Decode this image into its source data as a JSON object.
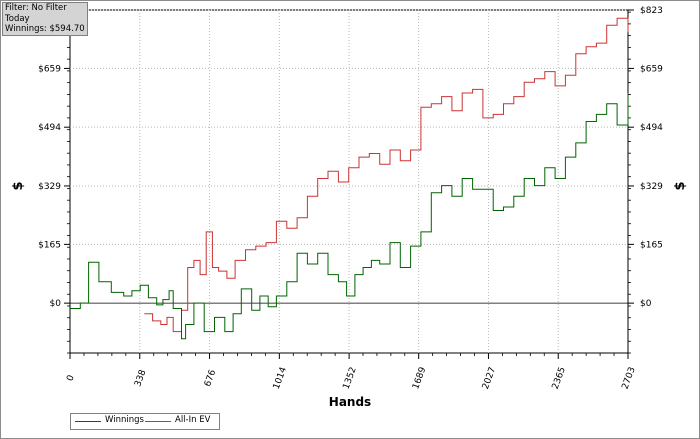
{
  "info_box": {
    "filter": "Filter: No Filter",
    "period": "Today",
    "winnings": "Winnings: $594.70"
  },
  "chart_data": {
    "type": "line",
    "xlabel": "Hands",
    "ylabel": "$",
    "xlim": [
      0,
      2703
    ],
    "ylim": [
      -140,
      823
    ],
    "x_ticks": [
      0,
      338,
      676,
      1014,
      1352,
      1689,
      2027,
      2365,
      2703
    ],
    "x_tick_labels": [
      "0",
      "338",
      "676",
      "1014",
      "1352",
      "1689",
      "2027",
      "2365",
      "2703"
    ],
    "y_ticks": [
      0,
      165,
      329,
      494,
      659,
      823
    ],
    "y_tick_labels": [
      "$0",
      "$165",
      "$329",
      "$494",
      "$659",
      "$823"
    ],
    "grid": true,
    "legend_position": "bottom-left",
    "series": [
      {
        "name": "Winnings",
        "color": "#006400",
        "x": [
          0,
          50,
          90,
          140,
          200,
          260,
          300,
          340,
          380,
          420,
          450,
          480,
          500,
          540,
          560,
          600,
          650,
          700,
          750,
          790,
          830,
          880,
          920,
          960,
          1000,
          1050,
          1100,
          1150,
          1200,
          1250,
          1300,
          1340,
          1380,
          1420,
          1460,
          1500,
          1550,
          1600,
          1650,
          1700,
          1750,
          1800,
          1850,
          1900,
          1950,
          2000,
          2050,
          2100,
          2150,
          2200,
          2250,
          2300,
          2350,
          2400,
          2450,
          2500,
          2550,
          2600,
          2650,
          2703
        ],
        "y": [
          -15,
          0,
          115,
          60,
          30,
          20,
          35,
          50,
          15,
          -5,
          10,
          35,
          -15,
          -100,
          -60,
          0,
          -80,
          -40,
          -80,
          -30,
          40,
          -20,
          20,
          -10,
          20,
          60,
          140,
          110,
          140,
          80,
          60,
          20,
          80,
          100,
          120,
          110,
          170,
          100,
          160,
          200,
          310,
          330,
          300,
          350,
          320,
          320,
          260,
          270,
          300,
          350,
          330,
          380,
          350,
          410,
          450,
          510,
          530,
          560,
          500,
          590
        ]
      },
      {
        "name": "All-In EV",
        "color": "#cc3333",
        "x": [
          360,
          400,
          440,
          470,
          500,
          540,
          570,
          600,
          630,
          660,
          690,
          720,
          760,
          800,
          850,
          900,
          950,
          1000,
          1050,
          1100,
          1150,
          1200,
          1250,
          1300,
          1350,
          1400,
          1450,
          1500,
          1550,
          1600,
          1650,
          1700,
          1750,
          1800,
          1850,
          1900,
          1950,
          2000,
          2050,
          2100,
          2150,
          2200,
          2250,
          2300,
          2350,
          2400,
          2450,
          2500,
          2550,
          2600,
          2650,
          2703
        ],
        "y": [
          -30,
          -50,
          -60,
          -40,
          -80,
          -20,
          100,
          120,
          80,
          200,
          100,
          90,
          70,
          120,
          150,
          160,
          170,
          230,
          210,
          240,
          300,
          350,
          370,
          340,
          380,
          410,
          420,
          390,
          430,
          400,
          430,
          550,
          560,
          580,
          540,
          590,
          600,
          520,
          530,
          560,
          580,
          620,
          630,
          650,
          610,
          640,
          700,
          720,
          730,
          780,
          800,
          760
        ]
      }
    ]
  }
}
